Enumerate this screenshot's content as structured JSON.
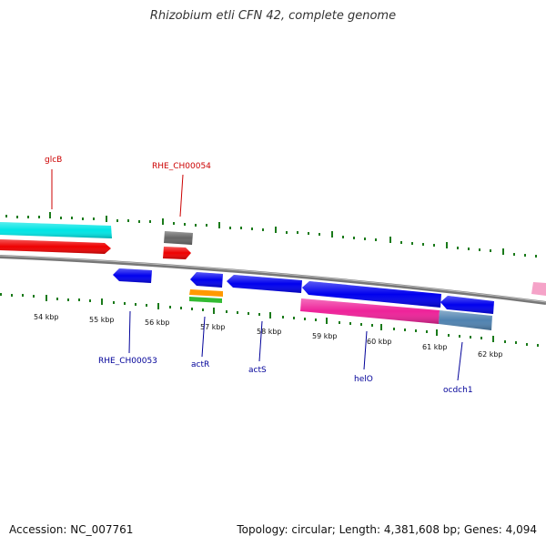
{
  "title": "Rhizobium etli CFN 42, complete genome",
  "footer": {
    "accession": "Accession: NC_007761",
    "stats": "Topology: circular; Length: 4,381,608 bp; Genes: 4,094"
  },
  "colors": {
    "backbone": "#888888",
    "ticks": "#1a7a1a",
    "cyan": "#00e5e5",
    "red": "#ee0000",
    "gray": "#666666",
    "blue": "#0000ee",
    "orange": "#ff9900",
    "green": "#33bb33",
    "pink": "#ee2299",
    "steel": "#4f82b0",
    "lightpink": "#f5a3c8"
  },
  "scale_labels": [
    "54 kbp",
    "55 kbp",
    "56 kbp",
    "57 kbp",
    "58 kbp",
    "59 kbp",
    "60 kbp",
    "61 kbp",
    "62 kbp"
  ],
  "gene_labels": {
    "glcB": "glcB",
    "RHE_CH00054": "RHE_CH00054",
    "RHE_CH00053": "RHE_CH00053",
    "actR": "actR",
    "actS": "actS",
    "helO": "helO",
    "ocdch1": "ocdch1"
  }
}
